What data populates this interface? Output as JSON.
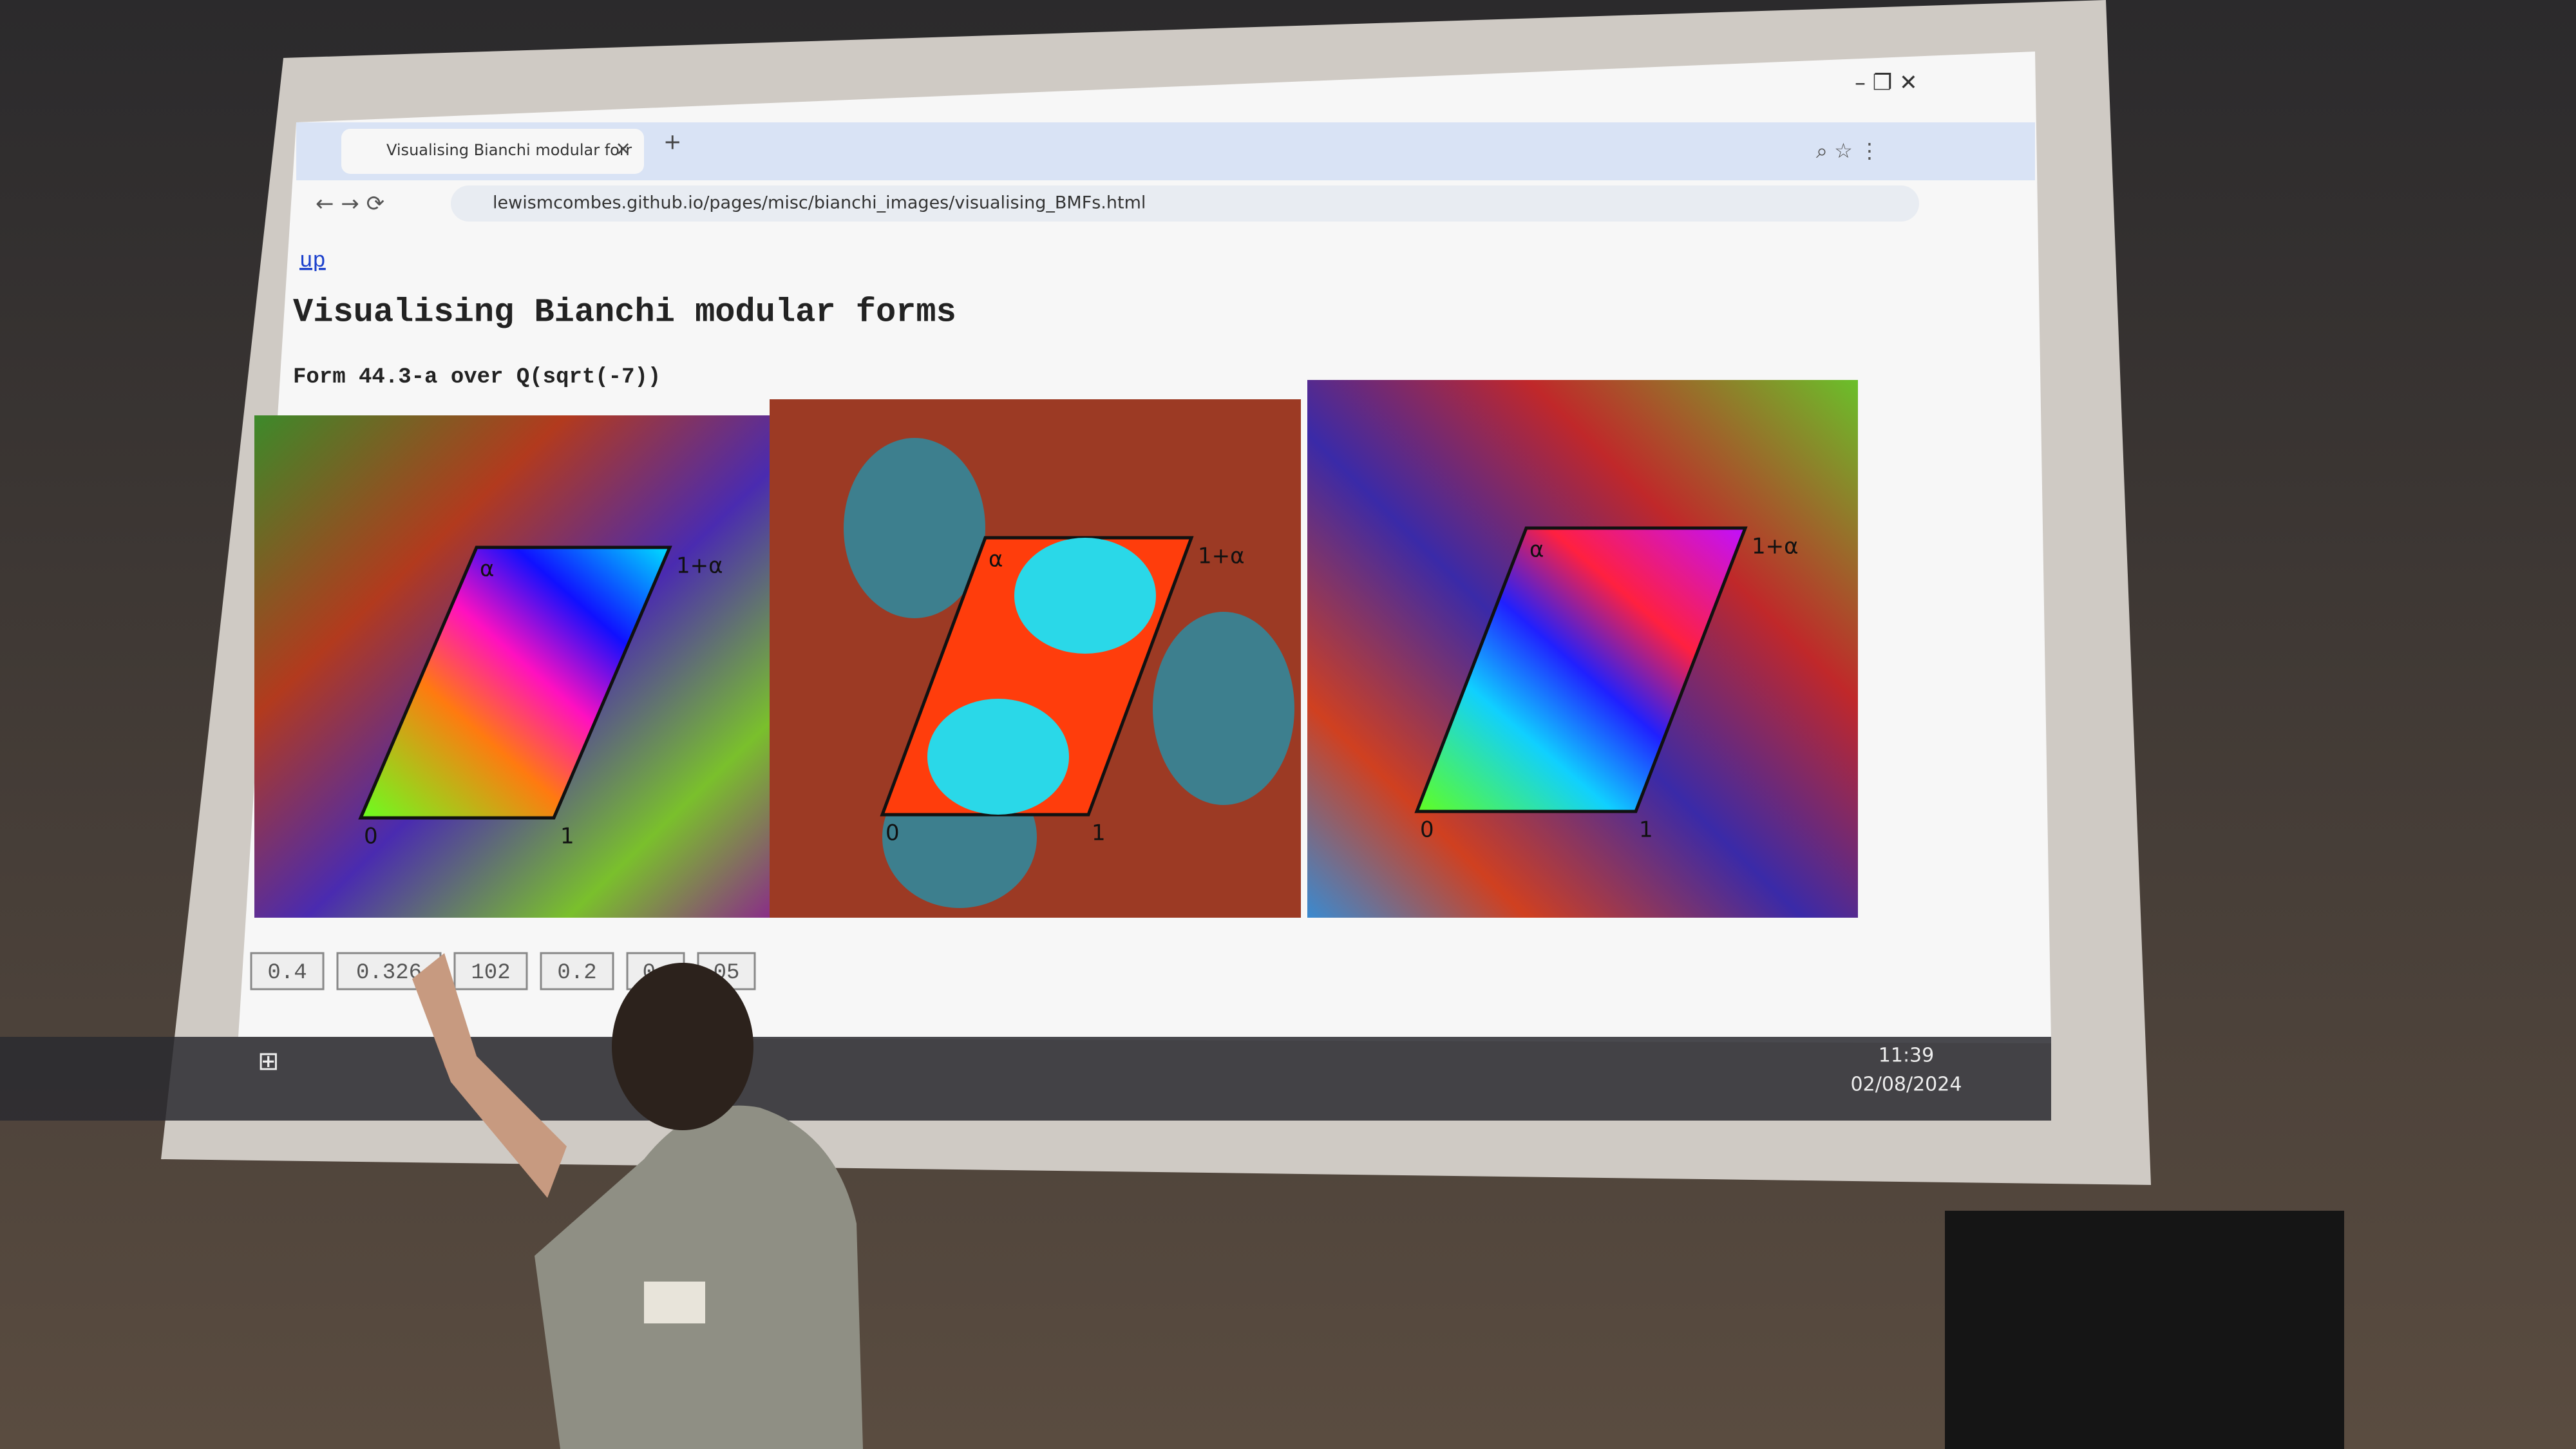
{
  "browser": {
    "tab_title": "Visualising Bianchi modular forr",
    "url": "lewismcombes.github.io/pages/misc/bianchi_images/visualising_BMFs.html"
  },
  "page": {
    "up_link": "up",
    "title": "Visualising Bianchi modular forms",
    "subtitle": "Form 44.3-a over Q(sqrt(-7))",
    "images": [
      {
        "labels": [
          "α",
          "1+α",
          "0",
          "1"
        ]
      },
      {
        "labels": [
          "α",
          "1+α",
          "0",
          "1"
        ]
      },
      {
        "labels": [
          "α",
          "1+α",
          "0",
          "1"
        ]
      }
    ],
    "buttons": [
      "0.4",
      "0.326",
      "102",
      "0.2",
      "0.",
      "05"
    ]
  },
  "taskbar": {
    "time": "11:39",
    "date": "02/08/2024"
  }
}
